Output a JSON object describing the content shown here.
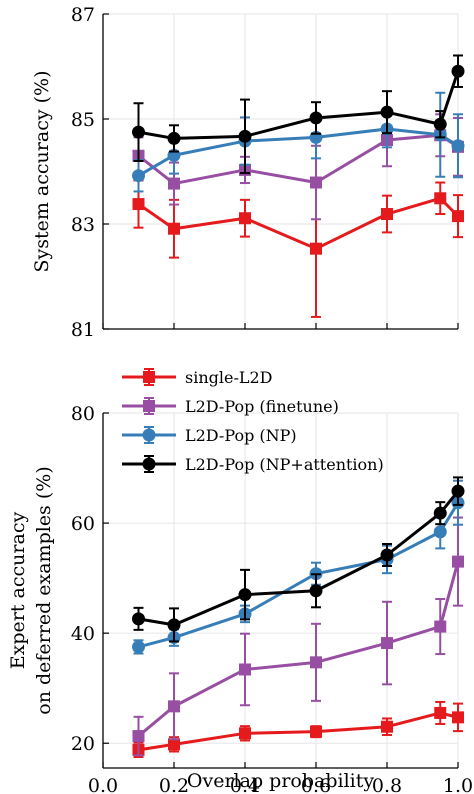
{
  "chart_data": [
    {
      "type": "line",
      "title": "",
      "xlabel": "",
      "ylabel": "System accuracy (%)",
      "xlim": [
        0.0,
        1.0
      ],
      "ylim": [
        81,
        87
      ],
      "xticks": [
        0.0,
        0.2,
        0.4,
        0.6,
        0.8,
        1.0
      ],
      "yticks": [
        81,
        83,
        85,
        87
      ],
      "ytick_labels": [
        "81",
        "83",
        "85",
        "87"
      ],
      "xtick_labels": [],
      "grid": true,
      "legend": null,
      "series": [
        {
          "name": "single-L2D",
          "color": "#e41a1c",
          "marker": "square",
          "x": [
            0.1,
            0.2,
            0.4,
            0.6,
            0.8,
            0.95,
            1.0
          ],
          "y": [
            83.38,
            82.91,
            83.11,
            82.53,
            83.19,
            83.49,
            83.15
          ],
          "err": [
            0.45,
            0.55,
            0.35,
            1.3,
            0.35,
            0.3,
            0.4
          ]
        },
        {
          "name": "L2D-Pop (finetune)",
          "color": "#984ea3",
          "marker": "square",
          "x": [
            0.1,
            0.2,
            0.4,
            0.6,
            0.8,
            0.95,
            1.0
          ],
          "y": [
            84.3,
            83.77,
            84.03,
            83.79,
            84.6,
            84.69,
            84.47
          ],
          "err": [
            0.35,
            0.4,
            0.25,
            0.7,
            0.5,
            0.4,
            0.55
          ]
        },
        {
          "name": "L2D-Pop (NP)",
          "color": "#377eb8",
          "marker": "circle",
          "x": [
            0.1,
            0.2,
            0.4,
            0.6,
            0.8,
            0.95,
            1.0
          ],
          "y": [
            83.92,
            84.31,
            84.58,
            84.65,
            84.81,
            84.7,
            84.49
          ],
          "err": [
            0.3,
            0.35,
            0.45,
            0.4,
            0.35,
            0.8,
            0.6
          ]
        },
        {
          "name": "L2D-Pop (NP+attention)",
          "color": "#000000",
          "marker": "circle",
          "x": [
            0.1,
            0.2,
            0.4,
            0.6,
            0.8,
            0.95,
            1.0
          ],
          "y": [
            84.75,
            84.63,
            84.67,
            85.02,
            85.13,
            84.9,
            85.91
          ],
          "err": [
            0.55,
            0.25,
            0.7,
            0.3,
            0.4,
            0.25,
            0.3
          ]
        }
      ]
    },
    {
      "type": "line",
      "title": "",
      "xlabel": "Overlap probability",
      "ylabel_lines": [
        "Expert accuracy",
        "on deferred examples (%)"
      ],
      "xlim": [
        0.0,
        1.0
      ],
      "ylim": [
        15.5,
        80
      ],
      "xticks": [
        0.0,
        0.2,
        0.4,
        0.6,
        0.8,
        1.0
      ],
      "xtick_labels": [
        "0.0",
        "0.2",
        "0.4",
        "0.6",
        "0.8",
        "1.0"
      ],
      "yticks": [
        20,
        40,
        60,
        80
      ],
      "ytick_labels": [
        "20",
        "40",
        "60",
        "80"
      ],
      "grid": true,
      "legend": "top-left",
      "series": [
        {
          "name": "single-L2D",
          "color": "#e41a1c",
          "marker": "square",
          "x": [
            0.1,
            0.2,
            0.4,
            0.6,
            0.8,
            0.95,
            1.0
          ],
          "y": [
            18.8,
            19.8,
            21.8,
            22.1,
            23.0,
            25.5,
            24.7
          ],
          "err": [
            1.3,
            1.3,
            1.3,
            1.0,
            1.5,
            2.0,
            2.5
          ]
        },
        {
          "name": "L2D-Pop (finetune)",
          "color": "#984ea3",
          "marker": "square",
          "x": [
            0.1,
            0.2,
            0.4,
            0.6,
            0.8,
            0.95,
            1.0
          ],
          "y": [
            21.3,
            26.7,
            33.4,
            34.7,
            38.2,
            41.2,
            53.0
          ],
          "err": [
            3.5,
            6.0,
            6.5,
            7.0,
            7.5,
            5.0,
            8.0
          ]
        },
        {
          "name": "L2D-Pop (NP)",
          "color": "#377eb8",
          "marker": "circle",
          "x": [
            0.1,
            0.2,
            0.4,
            0.6,
            0.8,
            0.95,
            1.0
          ],
          "y": [
            37.5,
            39.2,
            43.5,
            50.8,
            53.4,
            58.4,
            63.7
          ],
          "err": [
            1.2,
            1.5,
            1.5,
            2.0,
            2.5,
            3.0,
            4.0
          ]
        },
        {
          "name": "L2D-Pop (NP+attention)",
          "color": "#000000",
          "marker": "circle",
          "x": [
            0.1,
            0.2,
            0.4,
            0.6,
            0.8,
            0.95,
            1.0
          ],
          "y": [
            42.6,
            41.5,
            47.0,
            47.7,
            54.2,
            61.8,
            65.8
          ],
          "err": [
            2.0,
            3.0,
            4.5,
            3.0,
            2.0,
            2.0,
            2.5
          ]
        }
      ]
    }
  ],
  "legend_entries": [
    "single-L2D",
    "L2D-Pop (finetune)",
    "L2D-Pop (NP)",
    "L2D-Pop (NP+attention)"
  ]
}
